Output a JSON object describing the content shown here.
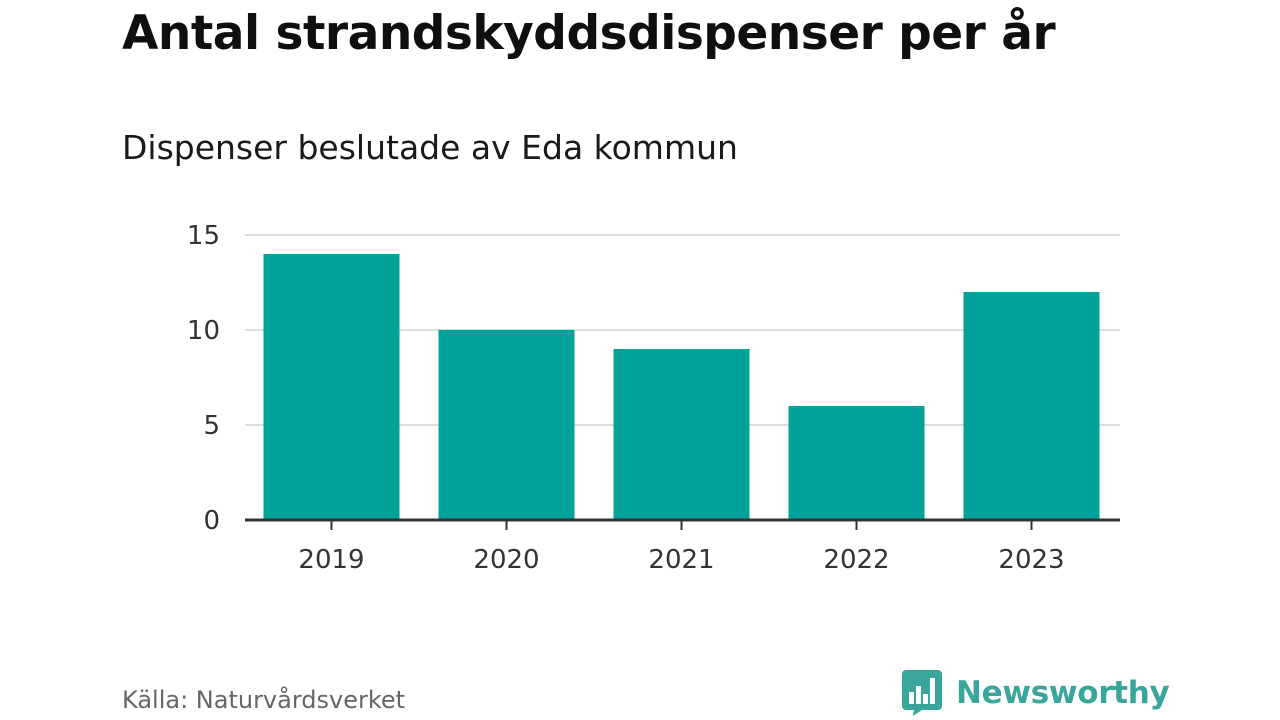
{
  "title": "Antal strandskyddsdispenser per år",
  "subtitle": "Dispenser beslutade av Eda kommun",
  "source": "Källa: Naturvårdsverket",
  "brand": "Newsworthy",
  "colors": {
    "bar": "#00a29a",
    "grid": "#dddddd",
    "axis": "#333333",
    "brand": "#3aa59b"
  },
  "chart_data": {
    "type": "bar",
    "title": "Antal strandskyddsdispenser per år",
    "subtitle": "Dispenser beslutade av Eda kommun",
    "categories": [
      "2019",
      "2020",
      "2021",
      "2022",
      "2023"
    ],
    "values": [
      14,
      10,
      9,
      6,
      12
    ],
    "ylim": [
      0,
      15
    ],
    "yticks": [
      "0",
      "5",
      "10",
      "15"
    ],
    "grid": true,
    "legend": "none"
  }
}
